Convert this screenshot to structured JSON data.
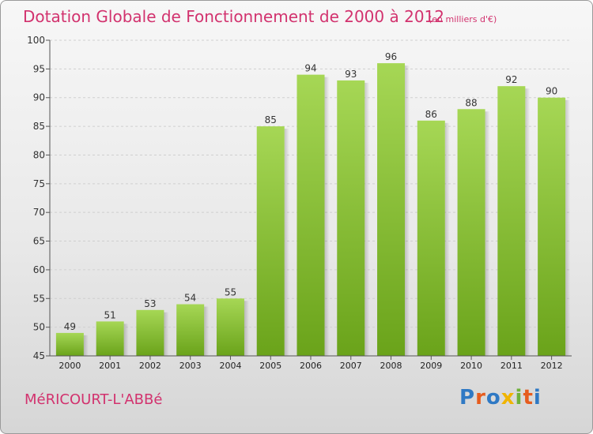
{
  "chart_data": {
    "type": "bar",
    "title": "Dotation Globale de Fonctionnement de 2000 à 2012",
    "subtitle": "(en milliers d'€)",
    "categories": [
      "2000",
      "2001",
      "2002",
      "2003",
      "2004",
      "2005",
      "2006",
      "2007",
      "2008",
      "2009",
      "2010",
      "2011",
      "2012"
    ],
    "values": [
      49,
      51,
      53,
      54,
      55,
      85,
      94,
      93,
      96,
      86,
      88,
      92,
      90
    ],
    "xlabel": "",
    "ylabel": "",
    "ylim": [
      45,
      100
    ],
    "yticks": [
      45,
      50,
      55,
      60,
      65,
      70,
      75,
      80,
      85,
      90,
      95,
      100
    ],
    "grid": true,
    "colors": {
      "bar_light": "#a6d755",
      "bar_dark": "#6aa31a",
      "axis": "#555555",
      "grid": "#cfcfcf",
      "text_accent": "#d2326e"
    }
  },
  "footer": {
    "commune": "MéRICOURT-L'ABBé",
    "logo": {
      "text": "Proxiti",
      "letters": [
        "P",
        "r",
        "o",
        "x",
        "i",
        "t",
        "i"
      ],
      "colors": [
        "#2f79c4",
        "#e65c1e",
        "#2f79c4",
        "#f0b400",
        "#6fb13a",
        "#e65c1e",
        "#2f79c4"
      ]
    }
  }
}
